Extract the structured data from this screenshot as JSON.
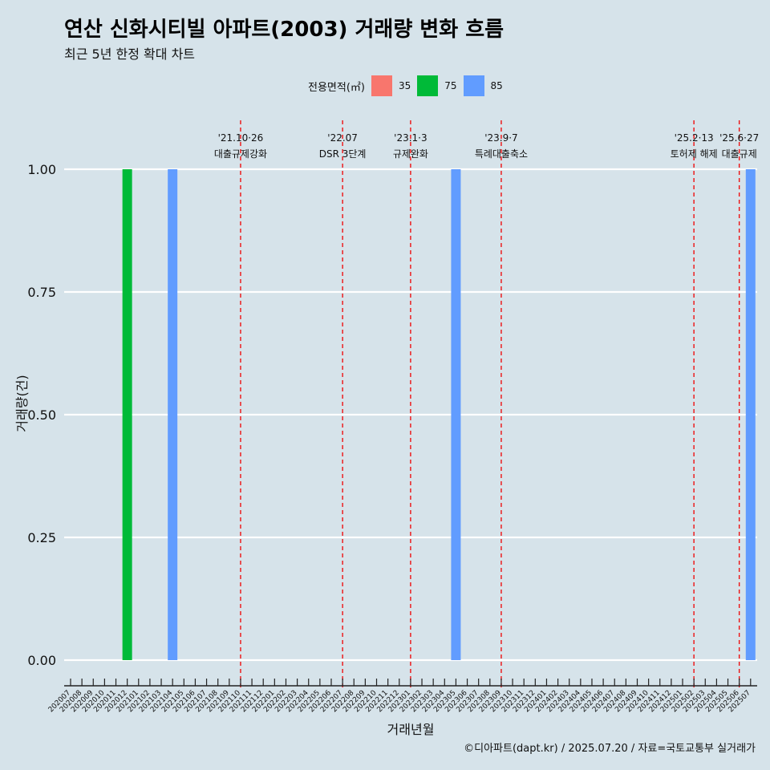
{
  "header": {
    "title": "연산 신화시티빌 아파트(2003) 거래량 변화 흐름",
    "subtitle": "최근 5년 한정 확대 차트"
  },
  "legend": {
    "title": "전용면적(㎡)",
    "items": [
      {
        "label": "35",
        "color": "#f8766d"
      },
      {
        "label": "75",
        "color": "#00ba38"
      },
      {
        "label": "85",
        "color": "#619cff"
      }
    ]
  },
  "caption": "©디아파트(dapt.kr) / 2025.07.20 / 자료=국토교통부 실거래가",
  "chart_data": {
    "type": "bar",
    "xlabel": "거래년월",
    "ylabel": "거래량(건)",
    "ylim": [
      0,
      1
    ],
    "yticks": [
      0,
      0.25,
      0.5,
      0.75,
      1
    ],
    "ytick_labels": [
      "0.00",
      "0.25",
      "0.50",
      "0.75",
      "1.00"
    ],
    "categories": [
      "202007",
      "202008",
      "202009",
      "202010",
      "202011",
      "202012",
      "202101",
      "202102",
      "202103",
      "202104",
      "202105",
      "202106",
      "202107",
      "202108",
      "202109",
      "202110",
      "202111",
      "202112",
      "202201",
      "202202",
      "202203",
      "202204",
      "202205",
      "202206",
      "202207",
      "202208",
      "202209",
      "202210",
      "202211",
      "202212",
      "202301",
      "202302",
      "202303",
      "202304",
      "202305",
      "202306",
      "202307",
      "202308",
      "202309",
      "202310",
      "202311",
      "202312",
      "202401",
      "202402",
      "202403",
      "202404",
      "202405",
      "202406",
      "202407",
      "202408",
      "202409",
      "202410",
      "202411",
      "202412",
      "202501",
      "202502",
      "202503",
      "202504",
      "202505",
      "202506",
      "202507"
    ],
    "bars": [
      {
        "month": "202012",
        "series": "75",
        "value": 1
      },
      {
        "month": "202104",
        "series": "85",
        "value": 1
      },
      {
        "month": "202305",
        "series": "85",
        "value": 1
      },
      {
        "month": "202507",
        "series": "85",
        "value": 1
      }
    ],
    "events": [
      {
        "month": "202110",
        "date": "'21.10·26",
        "label": "대출규제강화"
      },
      {
        "month": "202207",
        "date": "'22.07",
        "label": "DSR 3단계"
      },
      {
        "month": "202301",
        "date": "'23.1·3",
        "label": "규제완화"
      },
      {
        "month": "202309",
        "date": "'23.9·7",
        "label": "특례대출축소"
      },
      {
        "month": "202502",
        "date": "'25.2·13",
        "label": "토허제 해제"
      },
      {
        "month": "202506",
        "date": "'25.6·27",
        "label": "대출규제"
      }
    ],
    "grid": "horizontal",
    "legend_position": "top"
  }
}
